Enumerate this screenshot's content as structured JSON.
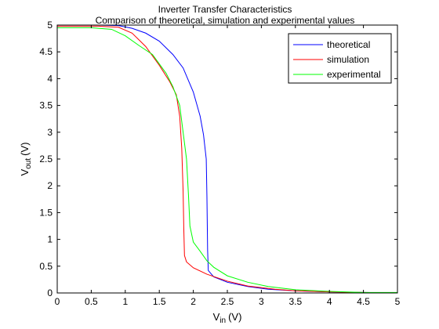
{
  "chart_data": {
    "type": "line",
    "title": "Inverter Transfer Characteristics",
    "subtitle": "Comparison of theoretical, simulation and experimental values",
    "xlabel": {
      "main": "V",
      "sub": "in",
      "unit": "(V)"
    },
    "ylabel": {
      "main": "V",
      "sub": "out",
      "unit": "(V)"
    },
    "xlim": [
      0,
      5
    ],
    "ylim": [
      0,
      5
    ],
    "xticks": [
      0,
      0.5,
      1,
      1.5,
      2,
      2.5,
      3,
      3.5,
      4,
      4.5,
      5
    ],
    "yticks": [
      0,
      0.5,
      1,
      1.5,
      2,
      2.5,
      3,
      3.5,
      4,
      4.5,
      5
    ],
    "grid": false,
    "legend_position": "top-right",
    "series": [
      {
        "name": "theoretical",
        "color": "#0000ff",
        "x": [
          0,
          0.6,
          0.9,
          1.1,
          1.3,
          1.5,
          1.7,
          1.85,
          2.0,
          2.1,
          2.15,
          2.19,
          2.2,
          2.21,
          2.22,
          2.3,
          2.5,
          2.8,
          3.1,
          3.5,
          4.0,
          4.5,
          5.0
        ],
        "y": [
          5,
          5,
          4.99,
          4.94,
          4.85,
          4.7,
          4.45,
          4.2,
          3.75,
          3.3,
          2.95,
          2.5,
          1.8,
          0.8,
          0.42,
          0.3,
          0.2,
          0.12,
          0.07,
          0.04,
          0.02,
          0.01,
          0.0
        ]
      },
      {
        "name": "simulation",
        "color": "#ff0000",
        "x": [
          0,
          0.6,
          0.9,
          1.1,
          1.3,
          1.5,
          1.65,
          1.75,
          1.8,
          1.83,
          1.85,
          1.86,
          1.87,
          1.9,
          2.0,
          2.2,
          2.5,
          2.8,
          3.2,
          3.5,
          4.0,
          4.5,
          5.0
        ],
        "y": [
          4.98,
          4.98,
          4.96,
          4.85,
          4.6,
          4.25,
          3.95,
          3.7,
          3.3,
          2.7,
          1.9,
          1.2,
          0.7,
          0.58,
          0.47,
          0.35,
          0.22,
          0.13,
          0.07,
          0.04,
          0.02,
          0.01,
          0.0
        ]
      },
      {
        "name": "experimental",
        "color": "#00ff00",
        "x": [
          0,
          0.5,
          0.8,
          1.0,
          1.2,
          1.4,
          1.6,
          1.7,
          1.8,
          1.85,
          1.9,
          1.93,
          1.95,
          2.0,
          2.1,
          2.2,
          2.3,
          2.5,
          2.8,
          3.1,
          3.5,
          4.0,
          4.5,
          5.0
        ],
        "y": [
          4.95,
          4.95,
          4.92,
          4.8,
          4.62,
          4.45,
          4.1,
          3.85,
          3.5,
          3.0,
          2.5,
          1.8,
          1.25,
          0.95,
          0.78,
          0.6,
          0.48,
          0.32,
          0.2,
          0.12,
          0.06,
          0.03,
          0.01,
          0.01
        ]
      }
    ]
  }
}
